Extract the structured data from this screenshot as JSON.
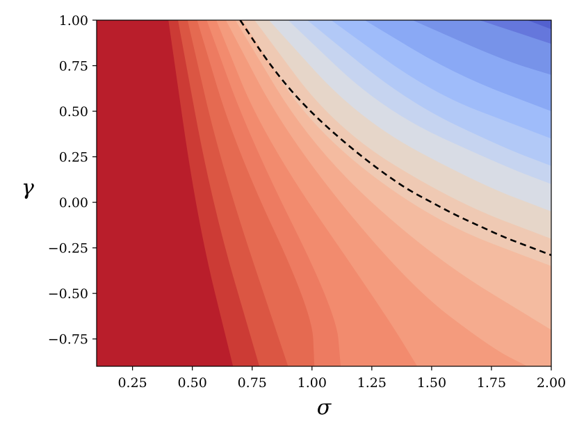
{
  "chart_data": {
    "type": "heatmap",
    "subtype": "filled-contour",
    "title": "",
    "xlabel": "σ",
    "ylabel": "γ",
    "xlim": [
      0.1,
      2.0
    ],
    "ylim": [
      -0.9,
      1.0
    ],
    "x_ticks": [
      0.25,
      0.5,
      0.75,
      1.0,
      1.25,
      1.5,
      1.75,
      2.0
    ],
    "x_tick_labels": [
      "0.25",
      "0.50",
      "0.75",
      "1.00",
      "1.25",
      "1.50",
      "1.75",
      "2.00"
    ],
    "y_ticks": [
      -0.75,
      -0.5,
      -0.25,
      0.0,
      0.25,
      0.5,
      0.75,
      1.0
    ],
    "y_tick_labels": [
      "−0.75",
      "−0.50",
      "−0.25",
      "0.00",
      "0.25",
      "0.50",
      "0.75",
      "1.00"
    ],
    "colormap": "coolwarm",
    "grid": false,
    "legend": false,
    "contour_boundaries": [
      {
        "level": 1,
        "points": [
          [
            0.4,
            1.0
          ],
          [
            0.52,
            -0.1
          ],
          [
            0.67,
            -0.9
          ]
        ]
      },
      {
        "level": 2,
        "points": [
          [
            0.44,
            1.0
          ],
          [
            0.58,
            0.0
          ],
          [
            0.78,
            -0.9
          ]
        ]
      },
      {
        "level": 3,
        "points": [
          [
            0.48,
            1.0
          ],
          [
            0.62,
            0.2
          ],
          [
            0.9,
            -0.9
          ]
        ]
      },
      {
        "level": 4,
        "points": [
          [
            0.52,
            1.0
          ],
          [
            0.68,
            0.3
          ],
          [
            1.0,
            -0.6
          ],
          [
            1.01,
            -0.9
          ]
        ]
      },
      {
        "level": 5,
        "points": [
          [
            0.56,
            1.0
          ],
          [
            0.74,
            0.35
          ],
          [
            1.1,
            -0.6
          ],
          [
            1.12,
            -0.9
          ]
        ]
      },
      {
        "level": 6,
        "points": [
          [
            0.6,
            1.0
          ],
          [
            0.8,
            0.35
          ],
          [
            1.3,
            -0.6
          ],
          [
            1.44,
            -0.9
          ]
        ]
      },
      {
        "level": 7,
        "points": [
          [
            0.64,
            1.0
          ],
          [
            0.9,
            0.35
          ],
          [
            1.4,
            -0.45
          ],
          [
            1.75,
            -0.8
          ],
          [
            1.9,
            -0.9
          ]
        ]
      },
      {
        "level": 8,
        "points": [
          [
            0.68,
            1.0
          ],
          [
            1.0,
            0.3
          ],
          [
            1.5,
            -0.3
          ],
          [
            2.0,
            -0.7
          ]
        ]
      },
      {
        "level": 9,
        "points": [
          [
            0.71,
            1.0
          ],
          [
            1.0,
            0.4
          ],
          [
            1.5,
            -0.1
          ],
          [
            2.0,
            -0.35
          ]
        ]
      },
      {
        "level": 10,
        "points": [
          [
            0.76,
            1.0
          ],
          [
            1.1,
            0.4
          ],
          [
            1.6,
            0.0
          ],
          [
            2.0,
            -0.2
          ]
        ]
      },
      {
        "level": 11,
        "points": [
          [
            0.82,
            1.0
          ],
          [
            1.2,
            0.45
          ],
          [
            1.7,
            0.1
          ],
          [
            2.0,
            -0.05
          ]
        ]
      },
      {
        "level": 12,
        "points": [
          [
            0.9,
            1.0
          ],
          [
            1.3,
            0.5
          ],
          [
            1.8,
            0.2
          ],
          [
            2.0,
            0.1
          ]
        ]
      },
      {
        "level": 13,
        "points": [
          [
            0.98,
            1.0
          ],
          [
            1.4,
            0.55
          ],
          [
            1.8,
            0.3
          ],
          [
            2.0,
            0.2
          ]
        ]
      },
      {
        "level": 14,
        "points": [
          [
            1.08,
            1.0
          ],
          [
            1.5,
            0.6
          ],
          [
            1.9,
            0.4
          ],
          [
            2.0,
            0.35
          ]
        ]
      },
      {
        "level": 15,
        "points": [
          [
            1.22,
            1.0
          ],
          [
            1.6,
            0.7
          ],
          [
            2.0,
            0.5
          ]
        ]
      },
      {
        "level": 16,
        "points": [
          [
            1.42,
            1.0
          ],
          [
            1.8,
            0.78
          ],
          [
            2.0,
            0.7
          ]
        ]
      },
      {
        "level": 17,
        "points": [
          [
            1.7,
            1.0
          ],
          [
            2.0,
            0.87
          ]
        ]
      },
      {
        "level": 18,
        "points": [
          [
            1.9,
            1.0
          ],
          [
            2.0,
            0.95
          ]
        ]
      }
    ],
    "band_colors": [
      "#b91e2b",
      "#cc3b35",
      "#db5643",
      "#e56a51",
      "#ed7b61",
      "#f28b6e",
      "#f49b7d",
      "#f5ab8e",
      "#f4bba0",
      "#efc9b3",
      "#e6d6c9",
      "#d8dce5",
      "#c6d4f0",
      "#b2c9f7",
      "#9fbcfa",
      "#8aa9f5",
      "#7793e9",
      "#6577dc",
      "#5361cf"
    ],
    "dashed_contour": {
      "style": "dashed",
      "color": "#000000",
      "points": [
        [
          0.7,
          1.0
        ],
        [
          0.8,
          0.8
        ],
        [
          0.9,
          0.63
        ],
        [
          1.0,
          0.49
        ],
        [
          1.1,
          0.37
        ],
        [
          1.2,
          0.26
        ],
        [
          1.3,
          0.16
        ],
        [
          1.4,
          0.07
        ],
        [
          1.5,
          0.0
        ],
        [
          1.6,
          -0.07
        ],
        [
          1.7,
          -0.13
        ],
        [
          1.8,
          -0.19
        ],
        [
          1.9,
          -0.24
        ],
        [
          2.0,
          -0.29
        ]
      ]
    }
  }
}
